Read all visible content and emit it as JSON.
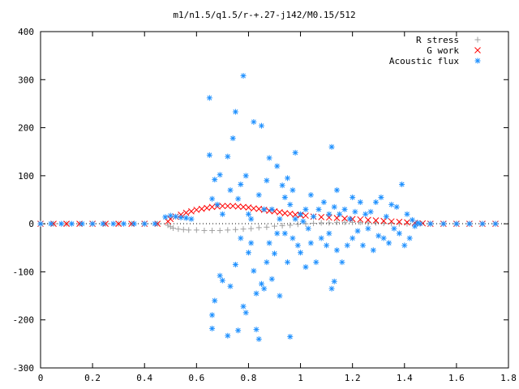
{
  "chart_data": {
    "type": "scatter",
    "title": "m1/n1.5/q1.5/r-+.27-j142/M0.15/512",
    "xlabel": "",
    "ylabel": "",
    "xlim": [
      0,
      1.8
    ],
    "ylim": [
      -300,
      400
    ],
    "x_ticks": [
      0,
      0.2,
      0.4,
      0.6,
      0.8,
      1,
      1.2,
      1.4,
      1.6,
      1.8
    ],
    "x_tick_labels": [
      "0",
      "0.2",
      "0.4",
      "0.6",
      "0.8",
      "1",
      "1.2",
      "1.4",
      "1.6",
      "1.8"
    ],
    "y_ticks": [
      -300,
      -200,
      -100,
      0,
      100,
      200,
      300,
      400
    ],
    "y_tick_labels": [
      "-300",
      "-200",
      "-100",
      "0",
      "100",
      "200",
      "300",
      "400"
    ],
    "grid": false,
    "legend_position": "top-right",
    "series": [
      {
        "name": "R stress",
        "marker": "plus",
        "color": "#a0a0a0",
        "points": [
          [
            0.0,
            0
          ],
          [
            0.05,
            0
          ],
          [
            0.1,
            0
          ],
          [
            0.15,
            0
          ],
          [
            0.2,
            0
          ],
          [
            0.25,
            0
          ],
          [
            0.3,
            0
          ],
          [
            0.35,
            0
          ],
          [
            0.4,
            0
          ],
          [
            0.45,
            0
          ],
          [
            0.49,
            -3
          ],
          [
            0.5,
            -6
          ],
          [
            0.51,
            -9
          ],
          [
            0.53,
            -11
          ],
          [
            0.55,
            -12
          ],
          [
            0.57,
            -13
          ],
          [
            0.6,
            -13
          ],
          [
            0.63,
            -14
          ],
          [
            0.66,
            -14
          ],
          [
            0.69,
            -14
          ],
          [
            0.72,
            -13
          ],
          [
            0.75,
            -12
          ],
          [
            0.78,
            -11
          ],
          [
            0.81,
            -10
          ],
          [
            0.84,
            -8
          ],
          [
            0.87,
            -7
          ],
          [
            0.9,
            -5
          ],
          [
            0.93,
            -4
          ],
          [
            0.96,
            -3
          ],
          [
            0.99,
            -1
          ],
          [
            1.02,
            0
          ],
          [
            1.05,
            1
          ],
          [
            1.08,
            2
          ],
          [
            1.11,
            2
          ],
          [
            1.14,
            3
          ],
          [
            1.17,
            3
          ],
          [
            1.2,
            3
          ],
          [
            1.23,
            3
          ],
          [
            1.26,
            2
          ],
          [
            1.29,
            2
          ],
          [
            1.32,
            1
          ],
          [
            1.35,
            1
          ],
          [
            1.38,
            0
          ],
          [
            1.41,
            0
          ],
          [
            1.45,
            0
          ],
          [
            1.5,
            0
          ],
          [
            1.55,
            0
          ],
          [
            1.6,
            0
          ],
          [
            1.65,
            0
          ],
          [
            1.7,
            0
          ],
          [
            1.75,
            0
          ]
        ]
      },
      {
        "name": "G work",
        "marker": "cross",
        "color": "#ff0000",
        "points": [
          [
            0.0,
            0
          ],
          [
            0.05,
            0
          ],
          [
            0.1,
            0
          ],
          [
            0.15,
            0
          ],
          [
            0.2,
            0
          ],
          [
            0.25,
            0
          ],
          [
            0.3,
            0
          ],
          [
            0.35,
            0
          ],
          [
            0.4,
            0
          ],
          [
            0.45,
            0
          ],
          [
            0.49,
            5
          ],
          [
            0.5,
            10
          ],
          [
            0.52,
            15
          ],
          [
            0.54,
            19
          ],
          [
            0.56,
            23
          ],
          [
            0.58,
            26
          ],
          [
            0.6,
            29
          ],
          [
            0.62,
            31
          ],
          [
            0.64,
            33
          ],
          [
            0.66,
            35
          ],
          [
            0.68,
            36
          ],
          [
            0.7,
            37
          ],
          [
            0.72,
            37
          ],
          [
            0.74,
            37
          ],
          [
            0.76,
            36
          ],
          [
            0.78,
            35
          ],
          [
            0.8,
            34
          ],
          [
            0.82,
            32
          ],
          [
            0.84,
            31
          ],
          [
            0.86,
            29
          ],
          [
            0.88,
            27
          ],
          [
            0.9,
            26
          ],
          [
            0.92,
            24
          ],
          [
            0.94,
            22
          ],
          [
            0.96,
            21
          ],
          [
            0.98,
            19
          ],
          [
            1.0,
            18
          ],
          [
            1.02,
            17
          ],
          [
            1.05,
            15
          ],
          [
            1.08,
            14
          ],
          [
            1.11,
            13
          ],
          [
            1.14,
            12
          ],
          [
            1.17,
            11
          ],
          [
            1.2,
            10
          ],
          [
            1.23,
            9
          ],
          [
            1.26,
            8
          ],
          [
            1.29,
            7
          ],
          [
            1.32,
            6
          ],
          [
            1.35,
            5
          ],
          [
            1.38,
            4
          ],
          [
            1.41,
            3
          ],
          [
            1.44,
            2
          ],
          [
            1.47,
            1
          ],
          [
            1.5,
            0
          ],
          [
            1.55,
            0
          ],
          [
            1.6,
            0
          ],
          [
            1.65,
            0
          ],
          [
            1.7,
            0
          ],
          [
            1.75,
            0
          ]
        ]
      },
      {
        "name": "Acoustic flux",
        "marker": "star",
        "color": "#1e90ff",
        "points": [
          [
            0.0,
            0
          ],
          [
            0.04,
            0
          ],
          [
            0.08,
            0
          ],
          [
            0.12,
            0
          ],
          [
            0.16,
            0
          ],
          [
            0.2,
            0
          ],
          [
            0.24,
            0
          ],
          [
            0.28,
            0
          ],
          [
            0.32,
            0
          ],
          [
            0.36,
            0
          ],
          [
            0.4,
            0
          ],
          [
            0.44,
            0
          ],
          [
            0.48,
            14
          ],
          [
            0.5,
            17
          ],
          [
            0.52,
            15
          ],
          [
            0.54,
            13
          ],
          [
            0.56,
            12
          ],
          [
            0.58,
            10
          ],
          [
            0.65,
            262
          ],
          [
            0.65,
            143
          ],
          [
            0.66,
            52
          ],
          [
            0.66,
            -190
          ],
          [
            0.66,
            -218
          ],
          [
            0.67,
            92
          ],
          [
            0.67,
            -160
          ],
          [
            0.68,
            40
          ],
          [
            0.69,
            102
          ],
          [
            0.69,
            -108
          ],
          [
            0.7,
            20
          ],
          [
            0.7,
            -118
          ],
          [
            0.72,
            140
          ],
          [
            0.72,
            -233
          ],
          [
            0.73,
            70
          ],
          [
            0.73,
            -130
          ],
          [
            0.74,
            178
          ],
          [
            0.75,
            233
          ],
          [
            0.75,
            -85
          ],
          [
            0.76,
            52
          ],
          [
            0.76,
            -222
          ],
          [
            0.77,
            82
          ],
          [
            0.77,
            -30
          ],
          [
            0.78,
            308
          ],
          [
            0.78,
            -172
          ],
          [
            0.79,
            100
          ],
          [
            0.79,
            -185
          ],
          [
            0.8,
            20
          ],
          [
            0.8,
            -60
          ],
          [
            0.81,
            10
          ],
          [
            0.81,
            -40
          ],
          [
            0.82,
            212
          ],
          [
            0.82,
            -98
          ],
          [
            0.83,
            -145
          ],
          [
            0.83,
            -220
          ],
          [
            0.84,
            60
          ],
          [
            0.84,
            -240
          ],
          [
            0.85,
            204
          ],
          [
            0.85,
            -125
          ],
          [
            0.86,
            30
          ],
          [
            0.86,
            -135
          ],
          [
            0.87,
            90
          ],
          [
            0.87,
            -80
          ],
          [
            0.88,
            137
          ],
          [
            0.88,
            -40
          ],
          [
            0.89,
            30
          ],
          [
            0.89,
            -115
          ],
          [
            0.9,
            -62
          ],
          [
            0.91,
            120
          ],
          [
            0.91,
            -20
          ],
          [
            0.92,
            10
          ],
          [
            0.92,
            -150
          ],
          [
            0.93,
            80
          ],
          [
            0.94,
            55
          ],
          [
            0.94,
            -20
          ],
          [
            0.95,
            95
          ],
          [
            0.95,
            -80
          ],
          [
            0.96,
            40
          ],
          [
            0.96,
            -235
          ],
          [
            0.97,
            70
          ],
          [
            0.97,
            -30
          ],
          [
            0.98,
            148
          ],
          [
            0.98,
            10
          ],
          [
            0.99,
            -45
          ],
          [
            1.0,
            20
          ],
          [
            1.0,
            -60
          ],
          [
            1.01,
            5
          ],
          [
            1.02,
            30
          ],
          [
            1.02,
            -90
          ],
          [
            1.03,
            -10
          ],
          [
            1.04,
            60
          ],
          [
            1.04,
            -40
          ],
          [
            1.05,
            15
          ],
          [
            1.06,
            -80
          ],
          [
            1.07,
            30
          ],
          [
            1.08,
            -30
          ],
          [
            1.09,
            45
          ],
          [
            1.1,
            -45
          ],
          [
            1.11,
            20
          ],
          [
            1.11,
            -20
          ],
          [
            1.12,
            160
          ],
          [
            1.12,
            -135
          ],
          [
            1.13,
            35
          ],
          [
            1.13,
            -120
          ],
          [
            1.14,
            70
          ],
          [
            1.14,
            -55
          ],
          [
            1.15,
            20
          ],
          [
            1.16,
            -80
          ],
          [
            1.17,
            30
          ],
          [
            1.18,
            -45
          ],
          [
            1.19,
            10
          ],
          [
            1.2,
            55
          ],
          [
            1.2,
            -30
          ],
          [
            1.21,
            25
          ],
          [
            1.22,
            -15
          ],
          [
            1.23,
            45
          ],
          [
            1.24,
            -45
          ],
          [
            1.25,
            20
          ],
          [
            1.26,
            -10
          ],
          [
            1.27,
            25
          ],
          [
            1.28,
            -55
          ],
          [
            1.29,
            45
          ],
          [
            1.3,
            -25
          ],
          [
            1.31,
            55
          ],
          [
            1.32,
            -30
          ],
          [
            1.33,
            15
          ],
          [
            1.34,
            -40
          ],
          [
            1.35,
            40
          ],
          [
            1.36,
            -10
          ],
          [
            1.37,
            35
          ],
          [
            1.38,
            -20
          ],
          [
            1.39,
            82
          ],
          [
            1.4,
            -45
          ],
          [
            1.41,
            20
          ],
          [
            1.42,
            -30
          ],
          [
            1.43,
            8
          ],
          [
            1.44,
            -5
          ],
          [
            1.45,
            2
          ],
          [
            1.46,
            0
          ],
          [
            1.5,
            0
          ],
          [
            1.55,
            0
          ],
          [
            1.6,
            0
          ],
          [
            1.65,
            0
          ],
          [
            1.7,
            0
          ],
          [
            1.75,
            0
          ]
        ]
      }
    ]
  }
}
